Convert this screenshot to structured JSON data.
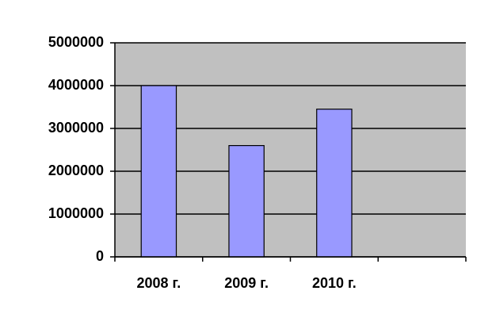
{
  "chart_data": {
    "type": "bar",
    "categories": [
      "2008 г.",
      "2009 г.",
      "2010 г.",
      null
    ],
    "values": [
      4000000,
      2600000,
      3450000,
      null
    ],
    "color": "#9999ff",
    "ylim": [
      0,
      5000000
    ],
    "yticks": [
      0,
      1000000,
      2000000,
      3000000,
      4000000,
      5000000
    ],
    "grid": true
  }
}
